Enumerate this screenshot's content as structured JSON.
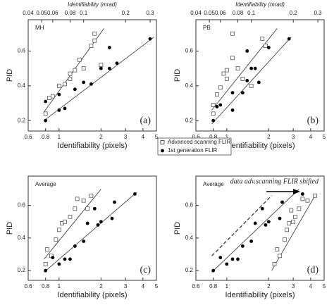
{
  "chart_data": [
    {
      "type": "scatter",
      "label": "MH",
      "panel_label": "(a)",
      "ylabel": "PID",
      "xlabel": "Identifiability (pixels)",
      "x2label": "Identifiability  (mrad)",
      "log_x": true,
      "xlim": [
        0.6,
        5
      ],
      "xticks": [
        0.6,
        0.8,
        1,
        2,
        3,
        4,
        5
      ],
      "x2lim": [
        0.04,
        0.333
      ],
      "x2ticks": [
        0.04,
        0.05,
        0.06,
        0.08,
        0.1,
        0.2,
        0.3
      ],
      "ylim": [
        0.14,
        0.78
      ],
      "yticks": [
        0.2,
        0.4,
        0.6
      ],
      "series": [
        {
          "name": "Advanced scanning FLIR",
          "marker": "square",
          "color": "#555555",
          "x": [
            0.8,
            0.85,
            0.9,
            1.0,
            1.1,
            1.2,
            1.2,
            1.3,
            1.4,
            1.5,
            1.7,
            1.8,
            1.8,
            2.0
          ],
          "values": [
            0.24,
            0.33,
            0.34,
            0.4,
            0.41,
            0.44,
            0.47,
            0.49,
            0.55,
            0.5,
            0.63,
            0.7,
            0.66,
            0.52
          ]
        },
        {
          "name": "1st generation FLIR",
          "marker": "dot",
          "color": "#000000",
          "x": [
            0.8,
            0.8,
            1.0,
            1.1,
            1.0,
            1.3,
            1.5,
            1.7,
            2.0,
            2.3,
            2.6,
            2.3,
            4.5
          ],
          "values": [
            0.2,
            0.31,
            0.26,
            0.27,
            0.35,
            0.38,
            0.42,
            0.41,
            0.5,
            0.5,
            0.53,
            0.62,
            0.67
          ]
        }
      ],
      "fits": [
        {
          "x": [
            0.78,
            2.1
          ],
          "values": [
            0.25,
            0.73
          ]
        },
        {
          "x": [
            0.78,
            4.8
          ],
          "values": [
            0.2,
            0.68
          ]
        }
      ]
    },
    {
      "type": "scatter",
      "label": "PB",
      "panel_label": "(b)",
      "ylabel": "PID",
      "xlabel": "Identifiability (pixels)",
      "x2label": "Identifiability  (mrad)",
      "log_x": true,
      "xlim": [
        0.6,
        5
      ],
      "xticks": [
        0.6,
        0.8,
        1,
        2,
        3,
        4,
        5
      ],
      "x2lim": [
        0.04,
        0.333
      ],
      "x2ticks": [
        0.04,
        0.05,
        0.06,
        0.08,
        0.1,
        0.2,
        0.3
      ],
      "ylim": [
        0.14,
        0.78
      ],
      "yticks": [
        0.2,
        0.4,
        0.6
      ],
      "series": [
        {
          "marker": "square",
          "color": "#555555",
          "x": [
            0.8,
            0.8,
            0.85,
            0.9,
            0.95,
            1.0,
            1.0,
            1.1,
            1.1,
            1.2,
            1.3,
            1.5,
            1.8,
            1.9
          ],
          "values": [
            0.24,
            0.29,
            0.35,
            0.39,
            0.47,
            0.49,
            0.44,
            0.56,
            0.7,
            0.5,
            0.44,
            0.4,
            0.67,
            0.63
          ]
        },
        {
          "marker": "dot",
          "color": "#000000",
          "x": [
            0.8,
            0.85,
            0.9,
            1.1,
            1.1,
            1.3,
            1.4,
            1.5,
            1.6,
            1.7,
            1.4,
            2.0,
            2.8
          ],
          "values": [
            0.2,
            0.28,
            0.29,
            0.26,
            0.36,
            0.36,
            0.43,
            0.5,
            0.5,
            0.42,
            0.6,
            0.62,
            0.67
          ]
        }
      ],
      "fits": [
        {
          "x": [
            0.78,
            2.3
          ],
          "values": [
            0.26,
            0.73
          ]
        },
        {
          "x": [
            0.78,
            2.9
          ],
          "values": [
            0.18,
            0.68
          ]
        }
      ]
    },
    {
      "type": "scatter",
      "label": "Average",
      "panel_label": "(c)",
      "ylabel": "PID",
      "xlabel": "Identifiability (pixels)",
      "log_x": true,
      "xlim": [
        0.6,
        5
      ],
      "xticks": [
        0.6,
        0.8,
        1,
        2,
        3,
        4,
        5
      ],
      "ylim": [
        0.14,
        0.78
      ],
      "yticks": [
        0.2,
        0.4,
        0.6
      ],
      "series": [
        {
          "marker": "square",
          "color": "#555555",
          "x": [
            0.8,
            0.82,
            0.88,
            0.95,
            1.0,
            1.05,
            1.1,
            1.2,
            1.3,
            1.35,
            1.5,
            1.6,
            1.7
          ],
          "values": [
            0.24,
            0.33,
            0.29,
            0.39,
            0.45,
            0.49,
            0.5,
            0.53,
            0.58,
            0.64,
            0.63,
            0.58,
            0.66
          ]
        },
        {
          "marker": "dot",
          "color": "#000000",
          "x": [
            0.8,
            0.9,
            1.0,
            1.1,
            1.2,
            1.3,
            1.5,
            1.6,
            1.9,
            2.0,
            2.4,
            1.8,
            2.5,
            3.5
          ],
          "values": [
            0.2,
            0.28,
            0.24,
            0.27,
            0.27,
            0.35,
            0.38,
            0.49,
            0.48,
            0.5,
            0.52,
            0.58,
            0.62,
            0.67
          ]
        }
      ],
      "fits": [
        {
          "x": [
            0.78,
            2.0
          ],
          "values": [
            0.27,
            0.7
          ]
        },
        {
          "x": [
            0.78,
            3.6
          ],
          "values": [
            0.19,
            0.68
          ]
        }
      ]
    },
    {
      "type": "scatter",
      "label": "Average",
      "panel_label": "(d)",
      "ylabel": "PID",
      "xlabel": "Identifiability (pixels)",
      "annotation": "data adv.scanning FLIR shifted",
      "log_x": true,
      "xlim": [
        0.6,
        5
      ],
      "xticks": [
        0.6,
        0.8,
        1,
        2,
        3,
        4,
        5
      ],
      "ylim": [
        0.14,
        0.78
      ],
      "yticks": [
        0.2,
        0.4,
        0.6
      ],
      "series": [
        {
          "marker": "square",
          "color": "#555555",
          "x": [
            2.2,
            2.3,
            2.4,
            2.6,
            2.7,
            2.8,
            3.0,
            3.1,
            3.3,
            3.5,
            3.8,
            2.9,
            4.3
          ],
          "values": [
            0.24,
            0.33,
            0.29,
            0.39,
            0.45,
            0.49,
            0.5,
            0.53,
            0.58,
            0.64,
            0.63,
            0.57,
            0.66
          ]
        },
        {
          "marker": "dot",
          "color": "#000000",
          "x": [
            0.8,
            0.9,
            1.0,
            1.1,
            1.2,
            1.3,
            1.5,
            1.6,
            1.9,
            2.0,
            2.4,
            1.8,
            2.5,
            3.5
          ],
          "values": [
            0.2,
            0.28,
            0.24,
            0.27,
            0.27,
            0.35,
            0.38,
            0.49,
            0.48,
            0.5,
            0.52,
            0.58,
            0.62,
            0.67
          ]
        }
      ],
      "fits": [
        {
          "x": [
            0.78,
            2.1
          ],
          "values": [
            0.29,
            0.66
          ],
          "dashed": true
        },
        {
          "x": [
            0.78,
            3.3
          ],
          "values": [
            0.19,
            0.7
          ]
        },
        {
          "x": [
            2.1,
            4.3
          ],
          "values": [
            0.2,
            0.66
          ]
        }
      ]
    }
  ]
}
